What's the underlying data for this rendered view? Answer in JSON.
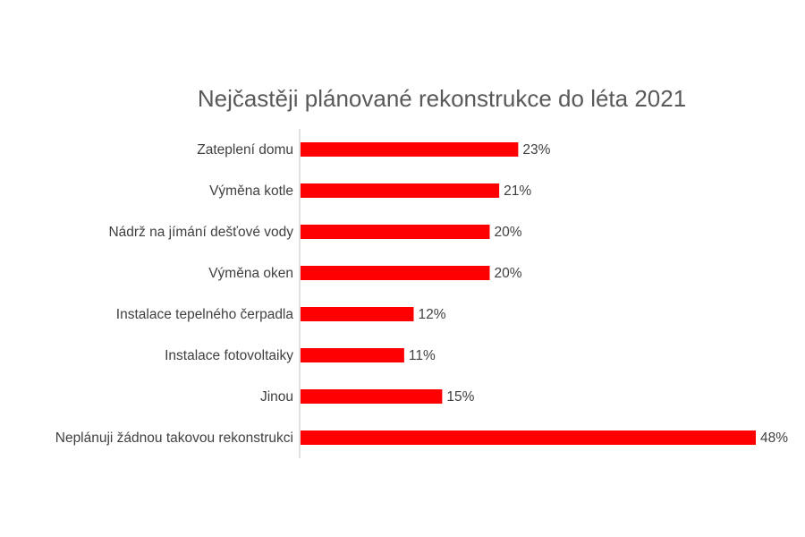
{
  "chart_data": {
    "type": "bar",
    "orientation": "horizontal",
    "title": "Nejčastěji plánované rekonstrukce do léta 2021",
    "categories": [
      "Zateplení domu",
      "Výměna kotle",
      "Nádrž na jímání dešťové vody",
      "Výměna oken",
      "Instalace tepelného čerpadla",
      "Instalace fotovoltaiky",
      "Jinou",
      "Neplánuji žádnou takovou rekonstrukci"
    ],
    "values": [
      23,
      21,
      20,
      20,
      12,
      11,
      15,
      48
    ],
    "data_labels": [
      "23%",
      "21%",
      "20%",
      "20%",
      "12%",
      "11%",
      "15%",
      "48%"
    ],
    "unit": "%",
    "xlim": [
      0,
      48
    ],
    "grid": false,
    "legend": "none",
    "bar_color": "#ff0000",
    "axis_color": "#d9d9d9"
  }
}
